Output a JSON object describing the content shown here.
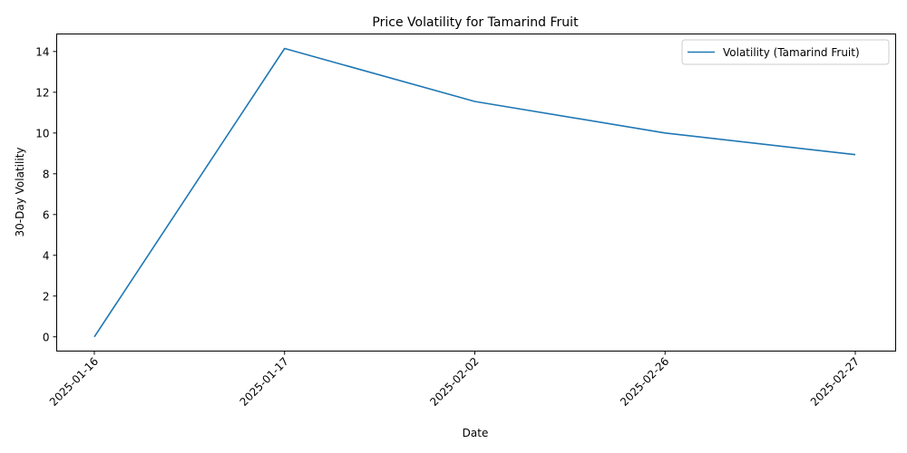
{
  "chart_data": {
    "type": "line",
    "title": "Price Volatility for Tamarind Fruit",
    "xlabel": "Date",
    "ylabel": "30-Day Volatility",
    "categories": [
      "2025-01-16",
      "2025-01-17",
      "2025-02-02",
      "2025-02-26",
      "2025-02-27"
    ],
    "series": [
      {
        "name": "Volatility (Tamarind Fruit)",
        "values": [
          0.0,
          14.15,
          11.55,
          10.0,
          8.94
        ],
        "color": "#1f77b4"
      }
    ],
    "ylim": [
      -0.7,
      14.86
    ],
    "yticks": [
      0,
      2,
      4,
      6,
      8,
      10,
      12,
      14
    ],
    "grid": false,
    "legend": "top-right"
  }
}
